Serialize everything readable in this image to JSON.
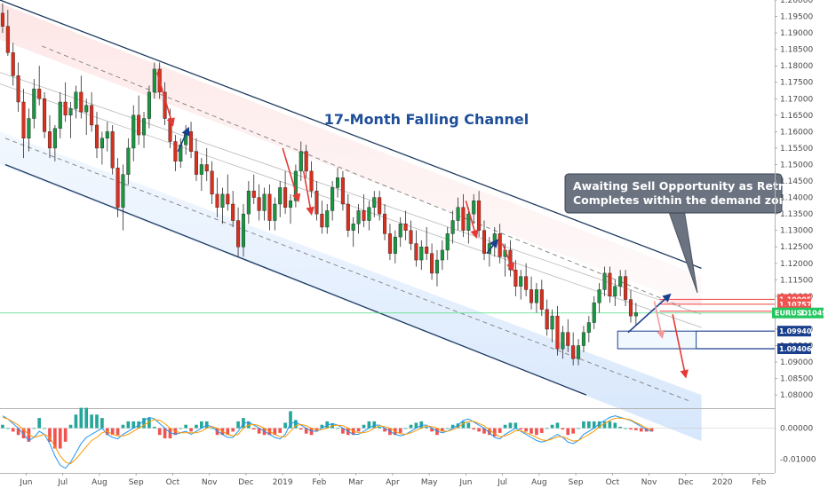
{
  "chart_data": {
    "type": "candlestick",
    "instrument_label": "EURUSD",
    "title": "17-Month Falling Channel",
    "callout_lines": [
      "Awaiting Sell Opportunity as Retracement",
      "Completes within the demand zone"
    ],
    "price_axis": {
      "range": [
        1.076,
        1.2
      ],
      "tick_labels": [
        "1.20000",
        "1.19500",
        "1.19000",
        "1.18500",
        "1.18000",
        "1.17500",
        "1.17000",
        "1.16500",
        "1.16000",
        "1.15500",
        "1.15000",
        "1.14500",
        "1.14000",
        "1.13500",
        "1.13000",
        "1.12500",
        "1.12000",
        "1.11500",
        "1.11000",
        "1.10500",
        "1.10000",
        "1.09500",
        "1.09000",
        "1.08500",
        "1.08000"
      ],
      "tick_values": [
        1.2,
        1.195,
        1.19,
        1.185,
        1.18,
        1.175,
        1.17,
        1.165,
        1.16,
        1.155,
        1.15,
        1.145,
        1.14,
        1.135,
        1.13,
        1.125,
        1.12,
        1.115,
        1.11,
        1.105,
        1.1,
        1.095,
        1.09,
        1.085,
        1.08
      ]
    },
    "oscillator_axis": {
      "range": [
        -0.0145,
        0.0062
      ],
      "tick_labels": [
        "0.00000",
        "-0.01000"
      ],
      "tick_values": [
        0.0,
        -0.01
      ]
    },
    "time_axis": {
      "labels": [
        "Jun",
        "Jul",
        "Aug",
        "Sep",
        "Oct",
        "Nov",
        "Dec",
        "2019",
        "Feb",
        "Mar",
        "Apr",
        "May",
        "Jun",
        "Jul",
        "Aug",
        "Sep",
        "Oct",
        "Nov",
        "Dec",
        "2020",
        "Feb"
      ],
      "positions": [
        5,
        12,
        19,
        26,
        33,
        40,
        47,
        54,
        61,
        68,
        75,
        82,
        89,
        96,
        103,
        110,
        117,
        124,
        131,
        138,
        145
      ]
    },
    "bar_range": [
      0,
      148
    ],
    "price_levels": [
      {
        "label": "1.10905",
        "value": 1.10905,
        "color": "#ef5350"
      },
      {
        "label": "1.10757",
        "value": 1.10757,
        "color": "#ef5350"
      },
      {
        "label": "1.10544",
        "value": 1.10544,
        "color": "#ef5350"
      },
      {
        "label": "1.10492",
        "value": 1.10492,
        "color": "#22c55e",
        "prefix": "EURUSD"
      },
      {
        "label": "1.09940",
        "value": 1.0994,
        "color": "#1a3f8c"
      },
      {
        "label": "1.09406",
        "value": 1.09406,
        "color": "#1a3f8c"
      }
    ],
    "channel": {
      "upper": [
        [
          0,
          1.2
        ],
        [
          134,
          1.1185
        ]
      ],
      "lower": [
        [
          1,
          1.15
        ],
        [
          112,
          1.08
        ]
      ],
      "mid_dashed_upper": [
        [
          8,
          1.186
        ],
        [
          130,
          1.107
        ]
      ],
      "mid_dashed_lower": [
        [
          1,
          1.158
        ],
        [
          132,
          1.078
        ]
      ],
      "band_upper_top": [
        [
          0,
          1.199
        ],
        [
          134,
          1.116
        ]
      ],
      "band_upper_bottom": [
        [
          0,
          1.188
        ],
        [
          134,
          1.1065
        ]
      ],
      "band_lower_top": [
        [
          0,
          1.16
        ],
        [
          134,
          1.08
        ]
      ],
      "band_lower_bottom": [
        [
          0,
          1.15
        ],
        [
          134,
          1.066
        ]
      ]
    },
    "demand_zone": {
      "top": 1.0994,
      "bottom": 1.09406,
      "from_bar": 118,
      "to_bar": 133
    },
    "supply_zone": {
      "top": 1.10905,
      "bottom": 1.10757,
      "from_bar": 126,
      "to_bar": 134
    },
    "last_price": 1.10492,
    "candles": [
      {
        "o": 1.196,
        "h": 1.199,
        "l": 1.19,
        "c": 1.192
      },
      {
        "o": 1.192,
        "h": 1.197,
        "l": 1.183,
        "c": 1.184
      },
      {
        "o": 1.184,
        "h": 1.187,
        "l": 1.174,
        "c": 1.177
      },
      {
        "o": 1.177,
        "h": 1.181,
        "l": 1.166,
        "c": 1.169
      },
      {
        "o": 1.169,
        "h": 1.173,
        "l": 1.152,
        "c": 1.158
      },
      {
        "o": 1.158,
        "h": 1.167,
        "l": 1.154,
        "c": 1.164
      },
      {
        "o": 1.164,
        "h": 1.176,
        "l": 1.161,
        "c": 1.173
      },
      {
        "o": 1.173,
        "h": 1.18,
        "l": 1.168,
        "c": 1.17
      },
      {
        "o": 1.17,
        "h": 1.172,
        "l": 1.158,
        "c": 1.16
      },
      {
        "o": 1.16,
        "h": 1.165,
        "l": 1.152,
        "c": 1.155
      },
      {
        "o": 1.155,
        "h": 1.162,
        "l": 1.151,
        "c": 1.161
      },
      {
        "o": 1.161,
        "h": 1.172,
        "l": 1.158,
        "c": 1.169
      },
      {
        "o": 1.169,
        "h": 1.175,
        "l": 1.163,
        "c": 1.165
      },
      {
        "o": 1.165,
        "h": 1.169,
        "l": 1.158,
        "c": 1.167
      },
      {
        "o": 1.167,
        "h": 1.174,
        "l": 1.164,
        "c": 1.172
      },
      {
        "o": 1.172,
        "h": 1.177,
        "l": 1.164,
        "c": 1.166
      },
      {
        "o": 1.166,
        "h": 1.17,
        "l": 1.159,
        "c": 1.168
      },
      {
        "o": 1.168,
        "h": 1.172,
        "l": 1.16,
        "c": 1.162
      },
      {
        "o": 1.162,
        "h": 1.166,
        "l": 1.152,
        "c": 1.155
      },
      {
        "o": 1.155,
        "h": 1.16,
        "l": 1.15,
        "c": 1.158
      },
      {
        "o": 1.158,
        "h": 1.163,
        "l": 1.154,
        "c": 1.16
      },
      {
        "o": 1.16,
        "h": 1.162,
        "l": 1.147,
        "c": 1.149
      },
      {
        "o": 1.149,
        "h": 1.152,
        "l": 1.134,
        "c": 1.137
      },
      {
        "o": 1.137,
        "h": 1.15,
        "l": 1.13,
        "c": 1.147
      },
      {
        "o": 1.147,
        "h": 1.158,
        "l": 1.144,
        "c": 1.155
      },
      {
        "o": 1.155,
        "h": 1.168,
        "l": 1.151,
        "c": 1.165
      },
      {
        "o": 1.165,
        "h": 1.171,
        "l": 1.156,
        "c": 1.159
      },
      {
        "o": 1.159,
        "h": 1.166,
        "l": 1.155,
        "c": 1.164
      },
      {
        "o": 1.164,
        "h": 1.174,
        "l": 1.161,
        "c": 1.172
      },
      {
        "o": 1.172,
        "h": 1.181,
        "l": 1.17,
        "c": 1.179
      },
      {
        "o": 1.179,
        "h": 1.181,
        "l": 1.17,
        "c": 1.172
      },
      {
        "o": 1.172,
        "h": 1.175,
        "l": 1.162,
        "c": 1.164
      },
      {
        "o": 1.164,
        "h": 1.167,
        "l": 1.155,
        "c": 1.157
      },
      {
        "o": 1.157,
        "h": 1.159,
        "l": 1.148,
        "c": 1.151
      },
      {
        "o": 1.151,
        "h": 1.158,
        "l": 1.149,
        "c": 1.156
      },
      {
        "o": 1.156,
        "h": 1.162,
        "l": 1.153,
        "c": 1.16
      },
      {
        "o": 1.16,
        "h": 1.163,
        "l": 1.152,
        "c": 1.154
      },
      {
        "o": 1.154,
        "h": 1.158,
        "l": 1.145,
        "c": 1.147
      },
      {
        "o": 1.147,
        "h": 1.152,
        "l": 1.142,
        "c": 1.15
      },
      {
        "o": 1.15,
        "h": 1.155,
        "l": 1.145,
        "c": 1.148
      },
      {
        "o": 1.148,
        "h": 1.151,
        "l": 1.138,
        "c": 1.141
      },
      {
        "o": 1.141,
        "h": 1.146,
        "l": 1.134,
        "c": 1.137
      },
      {
        "o": 1.137,
        "h": 1.143,
        "l": 1.132,
        "c": 1.141
      },
      {
        "o": 1.141,
        "h": 1.147,
        "l": 1.136,
        "c": 1.138
      },
      {
        "o": 1.138,
        "h": 1.142,
        "l": 1.131,
        "c": 1.133
      },
      {
        "o": 1.133,
        "h": 1.137,
        "l": 1.122,
        "c": 1.125
      },
      {
        "o": 1.125,
        "h": 1.138,
        "l": 1.122,
        "c": 1.135
      },
      {
        "o": 1.135,
        "h": 1.145,
        "l": 1.132,
        "c": 1.142
      },
      {
        "o": 1.142,
        "h": 1.147,
        "l": 1.138,
        "c": 1.14
      },
      {
        "o": 1.14,
        "h": 1.144,
        "l": 1.133,
        "c": 1.136
      },
      {
        "o": 1.136,
        "h": 1.143,
        "l": 1.133,
        "c": 1.141
      },
      {
        "o": 1.141,
        "h": 1.144,
        "l": 1.13,
        "c": 1.133
      },
      {
        "o": 1.133,
        "h": 1.14,
        "l": 1.13,
        "c": 1.138
      },
      {
        "o": 1.138,
        "h": 1.145,
        "l": 1.134,
        "c": 1.143
      },
      {
        "o": 1.143,
        "h": 1.148,
        "l": 1.135,
        "c": 1.137
      },
      {
        "o": 1.137,
        "h": 1.141,
        "l": 1.132,
        "c": 1.139
      },
      {
        "o": 1.139,
        "h": 1.15,
        "l": 1.137,
        "c": 1.148
      },
      {
        "o": 1.148,
        "h": 1.157,
        "l": 1.145,
        "c": 1.154
      },
      {
        "o": 1.154,
        "h": 1.156,
        "l": 1.146,
        "c": 1.148
      },
      {
        "o": 1.148,
        "h": 1.151,
        "l": 1.14,
        "c": 1.142
      },
      {
        "o": 1.142,
        "h": 1.145,
        "l": 1.133,
        "c": 1.135
      },
      {
        "o": 1.135,
        "h": 1.139,
        "l": 1.129,
        "c": 1.131
      },
      {
        "o": 1.131,
        "h": 1.138,
        "l": 1.129,
        "c": 1.136
      },
      {
        "o": 1.136,
        "h": 1.145,
        "l": 1.133,
        "c": 1.143
      },
      {
        "o": 1.143,
        "h": 1.149,
        "l": 1.14,
        "c": 1.146
      },
      {
        "o": 1.146,
        "h": 1.148,
        "l": 1.136,
        "c": 1.138
      },
      {
        "o": 1.138,
        "h": 1.141,
        "l": 1.128,
        "c": 1.13
      },
      {
        "o": 1.13,
        "h": 1.134,
        "l": 1.125,
        "c": 1.132
      },
      {
        "o": 1.132,
        "h": 1.138,
        "l": 1.129,
        "c": 1.136
      },
      {
        "o": 1.136,
        "h": 1.141,
        "l": 1.131,
        "c": 1.133
      },
      {
        "o": 1.133,
        "h": 1.139,
        "l": 1.13,
        "c": 1.137
      },
      {
        "o": 1.137,
        "h": 1.142,
        "l": 1.134,
        "c": 1.14
      },
      {
        "o": 1.14,
        "h": 1.142,
        "l": 1.133,
        "c": 1.135
      },
      {
        "o": 1.135,
        "h": 1.138,
        "l": 1.127,
        "c": 1.129
      },
      {
        "o": 1.129,
        "h": 1.132,
        "l": 1.121,
        "c": 1.123
      },
      {
        "o": 1.123,
        "h": 1.13,
        "l": 1.12,
        "c": 1.128
      },
      {
        "o": 1.128,
        "h": 1.134,
        "l": 1.125,
        "c": 1.132
      },
      {
        "o": 1.132,
        "h": 1.136,
        "l": 1.127,
        "c": 1.13
      },
      {
        "o": 1.13,
        "h": 1.133,
        "l": 1.124,
        "c": 1.126
      },
      {
        "o": 1.126,
        "h": 1.13,
        "l": 1.119,
        "c": 1.121
      },
      {
        "o": 1.121,
        "h": 1.127,
        "l": 1.118,
        "c": 1.125
      },
      {
        "o": 1.125,
        "h": 1.131,
        "l": 1.121,
        "c": 1.123
      },
      {
        "o": 1.123,
        "h": 1.126,
        "l": 1.115,
        "c": 1.117
      },
      {
        "o": 1.117,
        "h": 1.124,
        "l": 1.113,
        "c": 1.121
      },
      {
        "o": 1.121,
        "h": 1.127,
        "l": 1.118,
        "c": 1.124
      },
      {
        "o": 1.124,
        "h": 1.131,
        "l": 1.121,
        "c": 1.129
      },
      {
        "o": 1.129,
        "h": 1.136,
        "l": 1.126,
        "c": 1.133
      },
      {
        "o": 1.133,
        "h": 1.14,
        "l": 1.13,
        "c": 1.137
      },
      {
        "o": 1.137,
        "h": 1.141,
        "l": 1.128,
        "c": 1.13
      },
      {
        "o": 1.13,
        "h": 1.137,
        "l": 1.126,
        "c": 1.135
      },
      {
        "o": 1.135,
        "h": 1.141,
        "l": 1.132,
        "c": 1.139
      },
      {
        "o": 1.139,
        "h": 1.142,
        "l": 1.128,
        "c": 1.13
      },
      {
        "o": 1.13,
        "h": 1.133,
        "l": 1.121,
        "c": 1.123
      },
      {
        "o": 1.123,
        "h": 1.128,
        "l": 1.119,
        "c": 1.126
      },
      {
        "o": 1.126,
        "h": 1.131,
        "l": 1.122,
        "c": 1.129
      },
      {
        "o": 1.129,
        "h": 1.132,
        "l": 1.12,
        "c": 1.122
      },
      {
        "o": 1.122,
        "h": 1.126,
        "l": 1.116,
        "c": 1.124
      },
      {
        "o": 1.124,
        "h": 1.127,
        "l": 1.116,
        "c": 1.118
      },
      {
        "o": 1.118,
        "h": 1.121,
        "l": 1.11,
        "c": 1.113
      },
      {
        "o": 1.113,
        "h": 1.118,
        "l": 1.109,
        "c": 1.116
      },
      {
        "o": 1.116,
        "h": 1.12,
        "l": 1.11,
        "c": 1.112
      },
      {
        "o": 1.112,
        "h": 1.116,
        "l": 1.106,
        "c": 1.108
      },
      {
        "o": 1.108,
        "h": 1.114,
        "l": 1.105,
        "c": 1.112
      },
      {
        "o": 1.112,
        "h": 1.115,
        "l": 1.104,
        "c": 1.106
      },
      {
        "o": 1.106,
        "h": 1.109,
        "l": 1.098,
        "c": 1.1
      },
      {
        "o": 1.1,
        "h": 1.106,
        "l": 1.096,
        "c": 1.104
      },
      {
        "o": 1.104,
        "h": 1.107,
        "l": 1.092,
        "c": 1.094
      },
      {
        "o": 1.094,
        "h": 1.101,
        "l": 1.091,
        "c": 1.099
      },
      {
        "o": 1.099,
        "h": 1.103,
        "l": 1.093,
        "c": 1.095
      },
      {
        "o": 1.095,
        "h": 1.099,
        "l": 1.089,
        "c": 1.091
      },
      {
        "o": 1.091,
        "h": 1.097,
        "l": 1.089,
        "c": 1.095
      },
      {
        "o": 1.095,
        "h": 1.101,
        "l": 1.093,
        "c": 1.099
      },
      {
        "o": 1.099,
        "h": 1.104,
        "l": 1.096,
        "c": 1.102
      },
      {
        "o": 1.102,
        "h": 1.11,
        "l": 1.1,
        "c": 1.108
      },
      {
        "o": 1.108,
        "h": 1.114,
        "l": 1.105,
        "c": 1.112
      },
      {
        "o": 1.112,
        "h": 1.119,
        "l": 1.11,
        "c": 1.117
      },
      {
        "o": 1.117,
        "h": 1.119,
        "l": 1.108,
        "c": 1.11
      },
      {
        "o": 1.11,
        "h": 1.115,
        "l": 1.107,
        "c": 1.113
      },
      {
        "o": 1.113,
        "h": 1.118,
        "l": 1.11,
        "c": 1.116
      },
      {
        "o": 1.116,
        "h": 1.118,
        "l": 1.107,
        "c": 1.109
      },
      {
        "o": 1.109,
        "h": 1.112,
        "l": 1.102,
        "c": 1.104
      },
      {
        "o": 1.104,
        "h": 1.108,
        "l": 1.101,
        "c": 1.105
      }
    ],
    "oscillator_line1": [
      0.004,
      0.003,
      0.0015,
      0.0,
      -0.002,
      -0.004,
      -0.003,
      -0.001,
      -0.002,
      -0.005,
      -0.009,
      -0.012,
      -0.013,
      -0.011,
      -0.008,
      -0.005,
      -0.003,
      -0.002,
      -0.001,
      0.0,
      -0.002,
      -0.003,
      -0.0035,
      -0.002,
      -0.001,
      0.0,
      0.001,
      0.0025,
      0.0035,
      0.003,
      0.0015,
      0.0,
      -0.0015,
      -0.002,
      -0.0015,
      -0.001,
      -0.002,
      -0.001,
      0.0,
      0.001,
      0.0005,
      -0.001,
      -0.002,
      -0.003,
      -0.003,
      -0.001,
      0.0015,
      0.002,
      0.001,
      0.0,
      -0.001,
      -0.002,
      -0.003,
      -0.0035,
      -0.002,
      0.0015,
      0.002,
      0.001,
      0.0,
      -0.001,
      -0.001,
      0.0,
      0.001,
      0.0015,
      0.001,
      0.0,
      -0.001,
      -0.002,
      -0.002,
      -0.001,
      0.0,
      0.001,
      0.001,
      0.0,
      -0.001,
      -0.002,
      -0.0025,
      -0.002,
      -0.001,
      0.0,
      0.001,
      0.001,
      0.0,
      -0.001,
      -0.0015,
      -0.001,
      0.0,
      0.001,
      0.0025,
      0.003,
      0.002,
      0.001,
      0.0,
      -0.0015,
      -0.003,
      -0.0035,
      -0.002,
      -0.001,
      0.0,
      -0.001,
      -0.002,
      -0.003,
      -0.004,
      -0.0045,
      -0.004,
      -0.003,
      -0.002,
      -0.003,
      -0.0045,
      -0.005,
      -0.004,
      -0.002,
      -0.001,
      0.0,
      0.0015,
      0.0025,
      0.0035,
      0.004,
      0.0035,
      0.003,
      0.0025,
      0.0015,
      0.0005,
      -0.0005,
      -0.001
    ],
    "oscillator_line2": [
      0.0035,
      0.003,
      0.002,
      0.001,
      -0.0005,
      -0.002,
      -0.003,
      -0.0025,
      -0.002,
      -0.003,
      -0.006,
      -0.009,
      -0.011,
      -0.0115,
      -0.01,
      -0.008,
      -0.006,
      -0.004,
      -0.003,
      -0.0015,
      -0.001,
      -0.002,
      -0.0025,
      -0.0025,
      -0.002,
      -0.001,
      0.0,
      0.001,
      0.002,
      0.0028,
      0.0025,
      0.0015,
      0.0,
      -0.001,
      -0.0015,
      -0.0015,
      -0.0015,
      -0.0015,
      -0.001,
      0.0,
      0.0005,
      0.0,
      -0.001,
      -0.002,
      -0.0025,
      -0.002,
      0.0,
      0.001,
      0.0012,
      0.0008,
      0.0,
      -0.001,
      -0.002,
      -0.0028,
      -0.0028,
      -0.001,
      0.0008,
      0.0012,
      0.0008,
      0.0,
      -0.0005,
      -0.0005,
      0.0,
      0.0008,
      0.001,
      0.0008,
      0.0,
      -0.001,
      -0.0015,
      -0.0015,
      -0.001,
      0.0,
      0.0008,
      0.0005,
      0.0,
      -0.001,
      -0.0018,
      -0.002,
      -0.0015,
      -0.0008,
      0.0,
      0.0008,
      0.0005,
      0.0,
      -0.001,
      -0.001,
      -0.0005,
      0.0003,
      0.0015,
      0.0022,
      0.0022,
      0.0015,
      0.0008,
      -0.0005,
      -0.0018,
      -0.0028,
      -0.0025,
      -0.0018,
      -0.0008,
      -0.0008,
      -0.0015,
      -0.0022,
      -0.003,
      -0.0038,
      -0.004,
      -0.0035,
      -0.0028,
      -0.0028,
      -0.0035,
      -0.0042,
      -0.004,
      -0.003,
      -0.002,
      -0.001,
      0.0005,
      0.0015,
      0.0025,
      0.0032,
      0.0033,
      0.003,
      0.0027,
      0.0018,
      0.001,
      0.0,
      -0.0005
    ]
  }
}
